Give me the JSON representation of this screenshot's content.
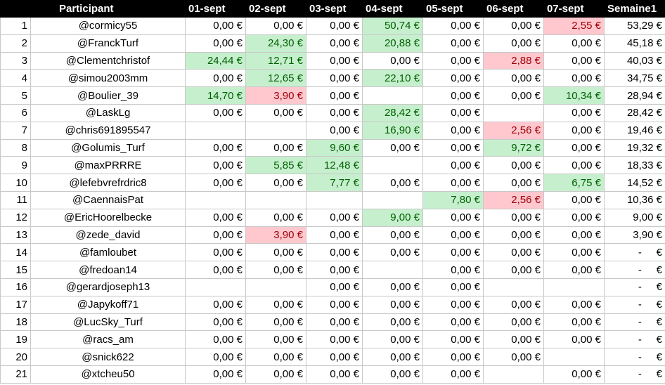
{
  "colors": {
    "positive_bg": "#c6efce",
    "positive_text": "#006100",
    "negative_bg": "#ffc7ce",
    "negative_text": "#9c0006",
    "header_bg": "#000000"
  },
  "headers": [
    "",
    "Participant",
    "01-sept",
    "02-sept",
    "03-sept",
    "04-sept",
    "05-sept",
    "06-sept",
    "07-sept",
    "Semaine1"
  ],
  "rows": [
    {
      "rank": "1",
      "name": "@cormicy55",
      "vals": [
        "0,00 €",
        "0,00 €",
        "0,00 €",
        "50,74 €",
        "0,00 €",
        "0,00 €",
        "2,55 €"
      ],
      "st": [
        "",
        "",
        "",
        "p",
        "",
        "",
        "n"
      ],
      "week": "53,29 €"
    },
    {
      "rank": "2",
      "name": "@FranckTurf",
      "vals": [
        "0,00 €",
        "24,30 €",
        "0,00 €",
        "20,88 €",
        "0,00 €",
        "0,00 €",
        "0,00 €"
      ],
      "st": [
        "",
        "p",
        "",
        "p",
        "",
        "",
        ""
      ],
      "week": "45,18 €"
    },
    {
      "rank": "3",
      "name": "@Clementchristof",
      "vals": [
        "24,44 €",
        "12,71 €",
        "0,00 €",
        "0,00 €",
        "0,00 €",
        "2,88 €",
        "0,00 €"
      ],
      "st": [
        "p",
        "p",
        "",
        "",
        "",
        "n",
        ""
      ],
      "week": "40,03 €"
    },
    {
      "rank": "4",
      "name": "@simou2003mm",
      "vals": [
        "0,00 €",
        "12,65 €",
        "0,00 €",
        "22,10 €",
        "0,00 €",
        "0,00 €",
        "0,00 €"
      ],
      "st": [
        "",
        "p",
        "",
        "p",
        "",
        "",
        ""
      ],
      "week": "34,75 €"
    },
    {
      "rank": "5",
      "name": "@Boulier_39",
      "vals": [
        "14,70 €",
        "3,90 €",
        "0,00 €",
        "",
        "0,00 €",
        "0,00 €",
        "10,34 €"
      ],
      "st": [
        "p",
        "n",
        "",
        "",
        "",
        "",
        "p"
      ],
      "week": "28,94 €"
    },
    {
      "rank": "6",
      "name": "@LaskLg",
      "vals": [
        "0,00 €",
        "0,00 €",
        "0,00 €",
        "28,42 €",
        "0,00 €",
        "",
        "0,00 €"
      ],
      "st": [
        "",
        "",
        "",
        "p",
        "",
        "",
        ""
      ],
      "week": "28,42 €"
    },
    {
      "rank": "7",
      "name": "@chris691895547",
      "vals": [
        "",
        "",
        "0,00 €",
        "16,90 €",
        "0,00 €",
        "2,56 €",
        "0,00 €"
      ],
      "st": [
        "",
        "",
        "",
        "p",
        "",
        "n",
        ""
      ],
      "week": "19,46 €"
    },
    {
      "rank": "8",
      "name": "@Golumis_Turf",
      "vals": [
        "0,00 €",
        "0,00 €",
        "9,60 €",
        "0,00 €",
        "0,00 €",
        "9,72 €",
        "0,00 €"
      ],
      "st": [
        "",
        "",
        "p",
        "",
        "",
        "p",
        ""
      ],
      "week": "19,32 €"
    },
    {
      "rank": "9",
      "name": "@maxPRRRE",
      "vals": [
        "0,00 €",
        "5,85 €",
        "12,48 €",
        "",
        "0,00 €",
        "0,00 €",
        "0,00 €"
      ],
      "st": [
        "",
        "p",
        "p",
        "",
        "",
        "",
        ""
      ],
      "week": "18,33 €"
    },
    {
      "rank": "10",
      "name": "@lefebvrefrdric8",
      "vals": [
        "0,00 €",
        "0,00 €",
        "7,77 €",
        "0,00 €",
        "0,00 €",
        "0,00 €",
        "6,75 €"
      ],
      "st": [
        "",
        "",
        "p",
        "",
        "",
        "",
        "p"
      ],
      "week": "14,52 €"
    },
    {
      "rank": "11",
      "name": "@CaennaisPat",
      "vals": [
        "",
        "",
        "",
        "",
        "7,80 €",
        "2,56 €",
        "0,00 €"
      ],
      "st": [
        "",
        "",
        "",
        "",
        "p",
        "n",
        ""
      ],
      "week": "10,36 €"
    },
    {
      "rank": "12",
      "name": "@EricHoorelbecke",
      "vals": [
        "0,00 €",
        "0,00 €",
        "0,00 €",
        "9,00 €",
        "0,00 €",
        "0,00 €",
        "0,00 €"
      ],
      "st": [
        "",
        "",
        "",
        "p",
        "",
        "",
        ""
      ],
      "week": "9,00 €"
    },
    {
      "rank": "13",
      "name": "@zede_david",
      "vals": [
        "0,00 €",
        "3,90 €",
        "0,00 €",
        "0,00 €",
        "0,00 €",
        "0,00 €",
        "0,00 €"
      ],
      "st": [
        "",
        "n",
        "",
        "",
        "",
        "",
        ""
      ],
      "week": "3,90 €"
    },
    {
      "rank": "14",
      "name": "@famloubet",
      "vals": [
        "0,00 €",
        "0,00 €",
        "0,00 €",
        "0,00 €",
        "0,00 €",
        "0,00 €",
        "0,00 €"
      ],
      "st": [
        "",
        "",
        "",
        "",
        "",
        "",
        ""
      ],
      "week": "-     €"
    },
    {
      "rank": "15",
      "name": "@fredoan14",
      "vals": [
        "0,00 €",
        "0,00 €",
        "0,00 €",
        "",
        "0,00 €",
        "0,00 €",
        "0,00 €"
      ],
      "st": [
        "",
        "",
        "",
        "",
        "",
        "",
        ""
      ],
      "week": "-     €"
    },
    {
      "rank": "16",
      "name": "@gerardjoseph13",
      "vals": [
        "",
        "",
        "0,00 €",
        "0,00 €",
        "0,00 €",
        "",
        ""
      ],
      "st": [
        "",
        "",
        "",
        "",
        "",
        "",
        ""
      ],
      "week": "-     €"
    },
    {
      "rank": "17",
      "name": "@Japykoff71",
      "vals": [
        "0,00 €",
        "0,00 €",
        "0,00 €",
        "0,00 €",
        "0,00 €",
        "0,00 €",
        "0,00 €"
      ],
      "st": [
        "",
        "",
        "",
        "",
        "",
        "",
        ""
      ],
      "week": "-     €"
    },
    {
      "rank": "18",
      "name": "@LucSky_Turf",
      "vals": [
        "0,00 €",
        "0,00 €",
        "0,00 €",
        "0,00 €",
        "0,00 €",
        "0,00 €",
        "0,00 €"
      ],
      "st": [
        "",
        "",
        "",
        "",
        "",
        "",
        ""
      ],
      "week": "-     €"
    },
    {
      "rank": "19",
      "name": "@racs_am",
      "vals": [
        "0,00 €",
        "0,00 €",
        "0,00 €",
        "0,00 €",
        "0,00 €",
        "0,00 €",
        "0,00 €"
      ],
      "st": [
        "",
        "",
        "",
        "",
        "",
        "",
        ""
      ],
      "week": "-     €"
    },
    {
      "rank": "20",
      "name": "@snick622",
      "vals": [
        "0,00 €",
        "0,00 €",
        "0,00 €",
        "0,00 €",
        "0,00 €",
        "0,00 €",
        ""
      ],
      "st": [
        "",
        "",
        "",
        "",
        "",
        "",
        ""
      ],
      "week": "-     €"
    },
    {
      "rank": "21",
      "name": "@xtcheu50",
      "vals": [
        "0,00 €",
        "0,00 €",
        "0,00 €",
        "0,00 €",
        "0,00 €",
        "",
        "0,00 €"
      ],
      "st": [
        "",
        "",
        "",
        "",
        "",
        "",
        ""
      ],
      "week": "-     €"
    }
  ]
}
